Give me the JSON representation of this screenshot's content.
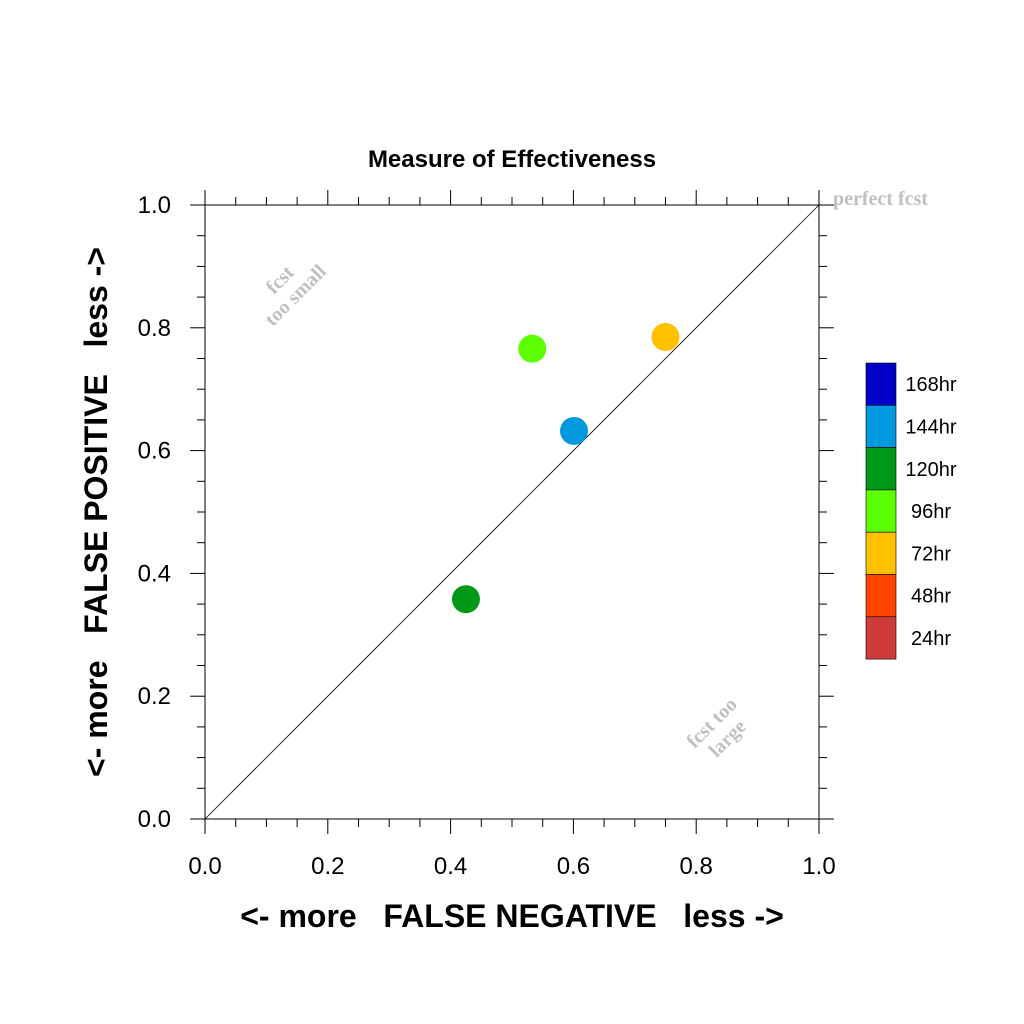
{
  "chart_data": {
    "type": "scatter",
    "title": "Measure of Effectiveness",
    "xlabel": "<- more   FALSE NEGATIVE   less ->",
    "ylabel": "<- more   FALSE POSITIVE   less ->",
    "xlim": [
      0,
      1
    ],
    "ylim": [
      0,
      1
    ],
    "xticks": [
      "0.0",
      "0.2",
      "0.4",
      "0.6",
      "0.8",
      "1.0"
    ],
    "yticks": [
      "0.0",
      "0.2",
      "0.4",
      "0.6",
      "0.8",
      "1.0"
    ],
    "grid": false,
    "diagonal": true,
    "annotations": {
      "perfect": "perfect fcst",
      "small_line1": "fcst",
      "small_line2": "too small",
      "large_line1": "fcst too",
      "large_line2": "large"
    },
    "legend_position": "right",
    "legend": [
      {
        "label": "168hr",
        "color": "#0000c8"
      },
      {
        "label": "144hr",
        "color": "#0099dd"
      },
      {
        "label": "120hr",
        "color": "#009917"
      },
      {
        "label": "96hr",
        "color": "#5cff00"
      },
      {
        "label": "72hr",
        "color": "#ffc000"
      },
      {
        "label": "48hr",
        "color": "#ff4500"
      },
      {
        "label": "24hr",
        "color": "#cd3b3b"
      }
    ],
    "points": [
      {
        "series": "120hr",
        "x": 0.425,
        "y": 0.358,
        "color": "#009917"
      },
      {
        "series": "96hr",
        "x": 0.533,
        "y": 0.766,
        "color": "#5cff00"
      },
      {
        "series": "144hr",
        "x": 0.601,
        "y": 0.632,
        "color": "#0099dd"
      },
      {
        "series": "72hr",
        "x": 0.75,
        "y": 0.785,
        "color": "#ffc000"
      }
    ],
    "annotation_color": "#c0c0c0"
  }
}
